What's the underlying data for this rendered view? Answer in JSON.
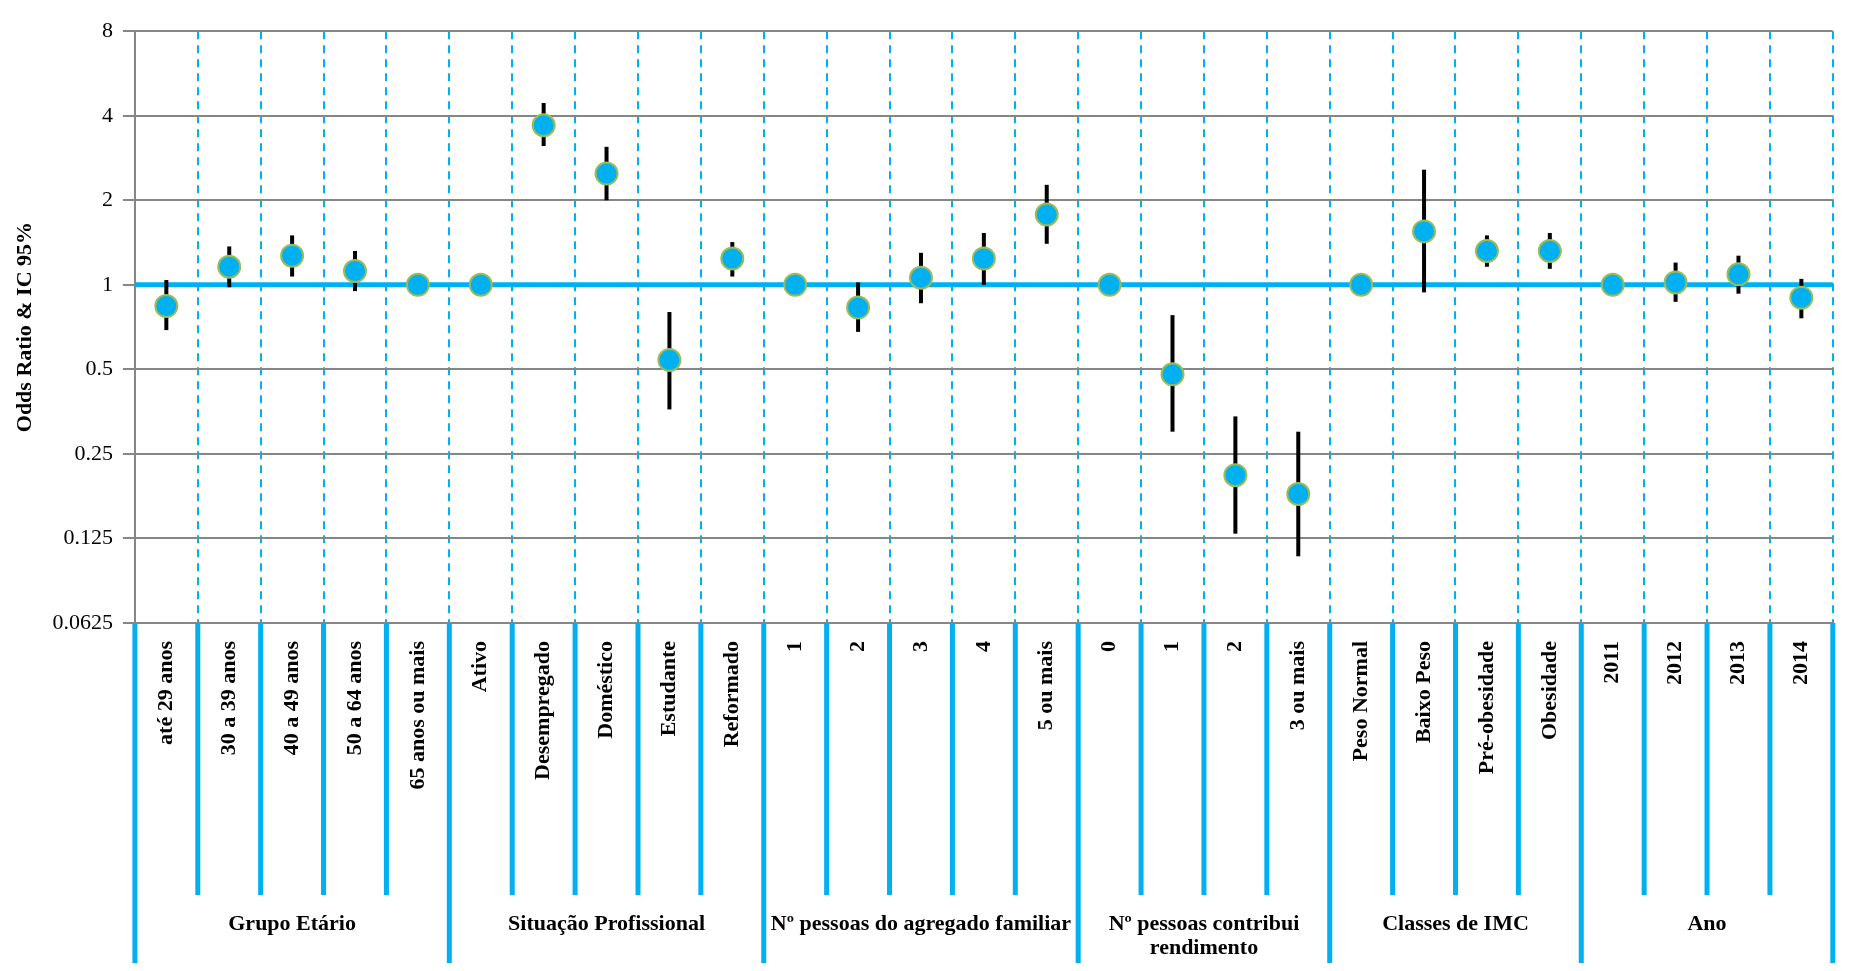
{
  "chart_data": {
    "type": "scatter",
    "ylabel": "Odds Ratio & IC 95%",
    "categories": [
      "até 29 anos",
      "30 a 39 anos",
      "40 a 49 anos",
      "50 a 64 anos",
      "65 anos ou mais",
      "Ativo",
      "Desempregado",
      "Doméstico",
      "Estudante",
      "Reformado",
      "1",
      "2",
      "3",
      "4",
      "5 ou mais",
      "0",
      "1",
      "2",
      "3 ou mais",
      "Peso Normal",
      "Baixo Peso",
      "Pré-obesidade",
      "Obesidade",
      "2011",
      "2012",
      "2013",
      "2014"
    ],
    "series": [
      {
        "color": "#00b0f0",
        "values": [
          0.84,
          1.16,
          1.27,
          1.12,
          1,
          1,
          3.7,
          2.49,
          0.54,
          1.24,
          1,
          0.83,
          1.06,
          1.24,
          1.78,
          1,
          0.48,
          0.21,
          0.18,
          1,
          1.55,
          1.32,
          1.32,
          1,
          1.02,
          1.09,
          0.9
        ],
        "errors": [
          [
            0.69,
            1.04
          ],
          [
            0.98,
            1.37
          ],
          [
            1.07,
            1.5
          ],
          [
            0.95,
            1.32
          ],
          null,
          null,
          [
            3.12,
            4.44
          ],
          [
            2.0,
            3.1
          ],
          [
            0.36,
            0.8
          ],
          [
            1.07,
            1.42
          ],
          null,
          [
            0.68,
            1.02
          ],
          [
            0.86,
            1.3
          ],
          [
            1.0,
            1.53
          ],
          [
            1.4,
            2.27
          ],
          null,
          [
            0.3,
            0.78
          ],
          [
            0.13,
            0.34
          ],
          [
            0.108,
            0.3
          ],
          null,
          [
            0.94,
            2.57
          ],
          [
            1.16,
            1.5
          ],
          [
            1.14,
            1.53
          ],
          null,
          [
            0.87,
            1.2
          ],
          [
            0.93,
            1.27
          ],
          [
            0.76,
            1.05
          ]
        ]
      }
    ],
    "ylim": [
      0.0625,
      8
    ],
    "yticks": [
      0.0625,
      0.125,
      0.25,
      0.5,
      1,
      2,
      4,
      8
    ],
    "log": true,
    "grid": true,
    "marker": "circle",
    "ref_lines": [
      {
        "axis": "y",
        "value": 1,
        "color": "#00b0f0"
      }
    ],
    "annotations": [
      "Grupo Etário",
      "Situação Profissional",
      "Nº pessoas do agregado familiar",
      "Nº pessoas contribui rendimento",
      "Classes de IMC",
      "Ano"
    ]
  }
}
